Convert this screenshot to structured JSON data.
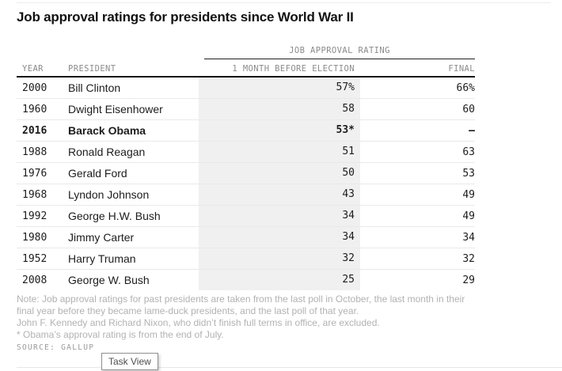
{
  "page": {
    "title": "Job approval ratings for presidents since World War II"
  },
  "table": {
    "group_header": "JOB APPROVAL RATING",
    "columns": {
      "year": "YEAR",
      "president": "PRESIDENT",
      "before": "1 MONTH BEFORE ELECTION",
      "final": "FINAL"
    },
    "rows": [
      {
        "year": "2000",
        "president": "Bill Clinton",
        "before": "57%",
        "final": "66%",
        "bold": false
      },
      {
        "year": "1960",
        "president": "Dwight Eisenhower",
        "before": "58",
        "final": "60",
        "bold": false
      },
      {
        "year": "2016",
        "president": "Barack Obama",
        "before": "53*",
        "final": "–",
        "bold": true
      },
      {
        "year": "1988",
        "president": "Ronald Reagan",
        "before": "51",
        "final": "63",
        "bold": false
      },
      {
        "year": "1976",
        "president": "Gerald Ford",
        "before": "50",
        "final": "53",
        "bold": false
      },
      {
        "year": "1968",
        "president": "Lyndon Johnson",
        "before": "43",
        "final": "49",
        "bold": false
      },
      {
        "year": "1992",
        "president": "George H.W. Bush",
        "before": "34",
        "final": "49",
        "bold": false
      },
      {
        "year": "1980",
        "president": "Jimmy Carter",
        "before": "34",
        "final": "34",
        "bold": false
      },
      {
        "year": "1952",
        "president": "Harry Truman",
        "before": "32",
        "final": "32",
        "bold": false
      },
      {
        "year": "2008",
        "president": "George W. Bush",
        "before": "25",
        "final": "29",
        "bold": false
      }
    ],
    "shaded_column_color": "#f0f0f0"
  },
  "notes": [
    "Note: Job approval ratings for past presidents are taken from the last poll in October, the last month in their",
    "final year before they became lame-duck presidents, and the last poll of that year.",
    "John F. Kennedy and Richard Nixon, who didn’t finish full terms in office, are excluded.",
    "* Obama’s approval rating is from the end of July."
  ],
  "source": "SOURCE: GALLUP",
  "tooltip": {
    "label": "Task View"
  },
  "chart_data": {
    "type": "table",
    "title": "Job approval ratings for presidents since World War II",
    "group_header": "JOB APPROVAL RATING",
    "columns": [
      "YEAR",
      "PRESIDENT",
      "1 MONTH BEFORE ELECTION",
      "FINAL"
    ],
    "rows": [
      [
        2000,
        "Bill Clinton",
        57,
        66
      ],
      [
        1960,
        "Dwight Eisenhower",
        58,
        60
      ],
      [
        2016,
        "Barack Obama",
        53,
        null
      ],
      [
        1988,
        "Ronald Reagan",
        51,
        63
      ],
      [
        1976,
        "Gerald Ford",
        50,
        53
      ],
      [
        1968,
        "Lyndon Johnson",
        43,
        49
      ],
      [
        1992,
        "George H.W. Bush",
        34,
        49
      ],
      [
        1980,
        "Jimmy Carter",
        34,
        34
      ],
      [
        1952,
        "Harry Truman",
        32,
        32
      ],
      [
        2008,
        "George W. Bush",
        25,
        29
      ]
    ],
    "units": "percent",
    "footnote_marker": "* Obama’s approval rating is from the end of July.",
    "source": "GALLUP"
  }
}
